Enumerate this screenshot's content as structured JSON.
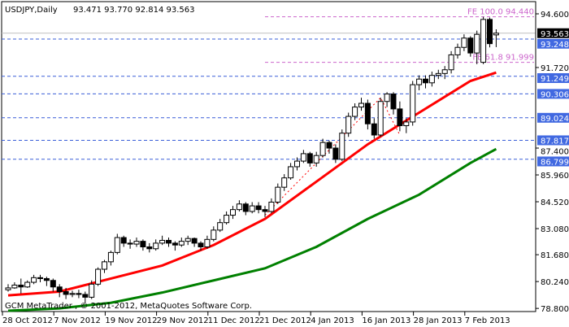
{
  "header": {
    "symbol_timeframe": "USDJPY,Daily",
    "ohlc": "93.471 93.770 92.814 93.563"
  },
  "footer": {
    "copyright": "GCM MetaTrader , © 2001-2012, MetaQuotes Software Corp."
  },
  "colors": {
    "bull_body": "#ffffff",
    "bear_body": "#000000",
    "ma_fast": "#ff0000",
    "ma_slow": "#008000",
    "level_lines": "#3a5fd8",
    "fe_lines": "#cc66cc",
    "price_line": "#c0c0c0"
  },
  "chart_data": {
    "type": "candlestick",
    "symbol": "USDJPY",
    "timeframe": "Daily",
    "ylim": [
      78.8,
      94.6
    ],
    "y_ticks": [
      "94.600",
      "91.720",
      "87.400",
      "85.960",
      "84.520",
      "83.080",
      "81.680",
      "80.240",
      "78.800"
    ],
    "x_ticks": [
      {
        "label": "28 Oct 2012",
        "bar": 0
      },
      {
        "label": "7 Nov 2012",
        "bar": 8
      },
      {
        "label": "19 Nov 2012",
        "bar": 16
      },
      {
        "label": "29 Nov 2012",
        "bar": 24
      },
      {
        "label": "11 Dec 2012",
        "bar": 32
      },
      {
        "label": "21 Dec 2012",
        "bar": 40
      },
      {
        "label": "4 Jan 2013",
        "bar": 48
      },
      {
        "label": "16 Jan 2013",
        "bar": 56
      },
      {
        "label": "28 Jan 2013",
        "bar": 64
      },
      {
        "label": "7 Feb 2013",
        "bar": 72
      }
    ],
    "candles": [
      [
        79.8,
        80.1,
        79.7,
        79.9
      ],
      [
        79.9,
        80.2,
        79.85,
        80.05
      ],
      [
        80.05,
        80.4,
        79.6,
        79.95
      ],
      [
        79.95,
        80.3,
        79.9,
        80.2
      ],
      [
        80.2,
        80.6,
        80.1,
        80.45
      ],
      [
        80.45,
        80.6,
        80.2,
        80.4
      ],
      [
        80.4,
        80.5,
        80.0,
        80.3
      ],
      [
        80.3,
        80.4,
        79.7,
        79.95
      ],
      [
        79.95,
        80.1,
        79.4,
        79.7
      ],
      [
        79.7,
        79.9,
        79.3,
        79.55
      ],
      [
        79.55,
        79.75,
        79.4,
        79.6
      ],
      [
        79.6,
        79.8,
        79.35,
        79.55
      ],
      [
        79.55,
        79.7,
        79.1,
        79.4
      ],
      [
        79.4,
        80.3,
        79.3,
        80.1
      ],
      [
        80.1,
        81.0,
        80.0,
        80.9
      ],
      [
        80.9,
        81.4,
        80.7,
        81.3
      ],
      [
        81.3,
        81.9,
        81.1,
        81.8
      ],
      [
        81.8,
        82.8,
        81.7,
        82.6
      ],
      [
        82.6,
        82.7,
        82.1,
        82.3
      ],
      [
        82.3,
        82.5,
        82.0,
        82.25
      ],
      [
        82.25,
        82.6,
        82.1,
        82.4
      ],
      [
        82.4,
        82.5,
        81.9,
        82.1
      ],
      [
        82.1,
        82.3,
        81.8,
        82.0
      ],
      [
        82.0,
        82.5,
        81.9,
        82.3
      ],
      [
        82.3,
        82.7,
        82.2,
        82.45
      ],
      [
        82.45,
        82.6,
        82.1,
        82.3
      ],
      [
        82.3,
        82.4,
        81.9,
        82.2
      ],
      [
        82.2,
        82.6,
        82.1,
        82.4
      ],
      [
        82.4,
        82.7,
        82.2,
        82.55
      ],
      [
        82.55,
        82.6,
        82.1,
        82.3
      ],
      [
        82.3,
        82.4,
        81.9,
        82.1
      ],
      [
        82.1,
        82.7,
        82.0,
        82.5
      ],
      [
        82.5,
        83.2,
        82.4,
        83.0
      ],
      [
        83.0,
        83.6,
        82.9,
        83.4
      ],
      [
        83.4,
        84.0,
        83.3,
        83.8
      ],
      [
        83.8,
        84.3,
        83.6,
        84.1
      ],
      [
        84.1,
        84.6,
        84.0,
        84.4
      ],
      [
        84.4,
        84.5,
        83.8,
        84.0
      ],
      [
        84.0,
        84.5,
        83.9,
        84.3
      ],
      [
        84.3,
        84.5,
        83.9,
        84.1
      ],
      [
        84.1,
        84.3,
        83.7,
        84.0
      ],
      [
        84.0,
        84.7,
        83.9,
        84.5
      ],
      [
        84.5,
        85.5,
        84.4,
        85.3
      ],
      [
        85.3,
        86.0,
        85.1,
        85.8
      ],
      [
        85.8,
        86.6,
        85.7,
        86.4
      ],
      [
        86.4,
        86.9,
        86.2,
        86.7
      ],
      [
        86.7,
        87.3,
        86.6,
        87.1
      ],
      [
        87.1,
        87.2,
        86.4,
        86.6
      ],
      [
        86.6,
        87.2,
        86.4,
        87.0
      ],
      [
        87.0,
        87.9,
        86.9,
        87.7
      ],
      [
        87.7,
        87.8,
        87.1,
        87.4
      ],
      [
        87.4,
        87.6,
        86.6,
        86.8
      ],
      [
        86.8,
        88.4,
        86.7,
        88.2
      ],
      [
        88.2,
        89.3,
        88.0,
        89.1
      ],
      [
        89.1,
        89.8,
        88.9,
        89.6
      ],
      [
        89.6,
        90.1,
        89.4,
        89.8
      ],
      [
        89.8,
        90.0,
        88.4,
        88.7
      ],
      [
        88.7,
        89.0,
        87.9,
        88.1
      ],
      [
        88.1,
        90.1,
        88.0,
        89.9
      ],
      [
        89.9,
        90.4,
        89.6,
        90.3
      ],
      [
        90.3,
        90.4,
        89.2,
        89.5
      ],
      [
        89.5,
        89.9,
        88.3,
        88.6
      ],
      [
        88.6,
        89.0,
        88.2,
        88.8
      ],
      [
        88.8,
        91.0,
        88.6,
        90.8
      ],
      [
        90.8,
        91.3,
        90.5,
        91.1
      ],
      [
        91.1,
        91.3,
        90.6,
        90.9
      ],
      [
        90.9,
        91.5,
        90.7,
        91.3
      ],
      [
        91.3,
        91.6,
        91.1,
        91.4
      ],
      [
        91.4,
        91.8,
        91.1,
        91.6
      ],
      [
        91.6,
        92.6,
        91.4,
        92.4
      ],
      [
        92.4,
        93.0,
        92.2,
        92.8
      ],
      [
        92.8,
        93.5,
        92.6,
        93.3
      ],
      [
        93.3,
        93.4,
        92.3,
        92.5
      ],
      [
        92.5,
        93.7,
        91.9,
        93.5
      ],
      [
        92.0,
        94.44,
        91.9,
        94.3
      ],
      [
        94.3,
        94.4,
        92.8,
        93.0
      ],
      [
        93.471,
        93.77,
        92.814,
        93.563
      ]
    ],
    "moving_averages": [
      {
        "color": "#ff0000",
        "points": [
          [
            0,
            79.5
          ],
          [
            8,
            79.7
          ],
          [
            16,
            80.4
          ],
          [
            24,
            81.1
          ],
          [
            32,
            82.2
          ],
          [
            40,
            83.6
          ],
          [
            48,
            85.6
          ],
          [
            56,
            87.6
          ],
          [
            64,
            89.3
          ],
          [
            72,
            91.0
          ],
          [
            76,
            91.45
          ]
        ]
      },
      {
        "color": "#008000",
        "points": [
          [
            0,
            78.65
          ],
          [
            8,
            78.8
          ],
          [
            16,
            79.1
          ],
          [
            24,
            79.65
          ],
          [
            32,
            80.3
          ],
          [
            40,
            80.95
          ],
          [
            48,
            82.1
          ],
          [
            56,
            83.6
          ],
          [
            64,
            84.9
          ],
          [
            72,
            86.6
          ],
          [
            76,
            87.35
          ]
        ]
      }
    ],
    "levels": [
      "93.248",
      "91.249",
      "90.306",
      "89.024",
      "87.817",
      "86.799"
    ],
    "current_price": "93.563",
    "fibo_expansion": {
      "points": [
        [
          40,
          83.8
        ],
        [
          58,
          90.1
        ],
        [
          61,
          88.1
        ]
      ],
      "levels": [
        {
          "label": "FE 100.0 94.440",
          "value": 94.44
        },
        {
          "label": "FE 61.8 91.999",
          "value": 91.999
        }
      ]
    }
  }
}
